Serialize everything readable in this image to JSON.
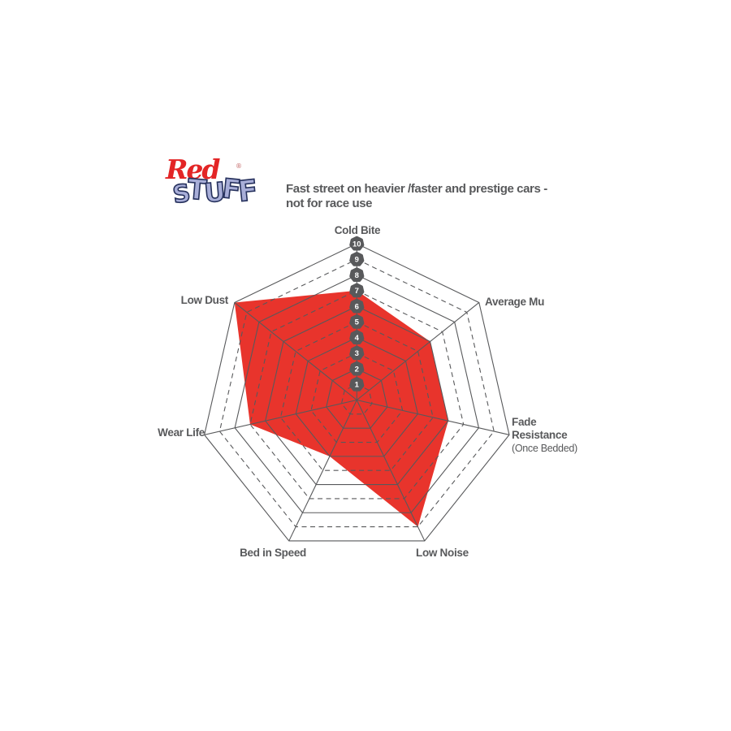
{
  "page": {
    "background": "#ffffff"
  },
  "logo": {
    "word1": "Red",
    "registered_mark": "®",
    "word2": "STUFF",
    "word1_color": "#e32526",
    "word2_fill": "#a8aed8",
    "word2_outline": "#25305c"
  },
  "description": {
    "line1": "Fast street on heavier /faster and prestige cars -",
    "line2": "not for race use"
  },
  "chart_data": {
    "type": "radar",
    "categories": [
      "Cold Bite",
      "Average Mu",
      "Fade Resistance (Once Bedded)",
      "Low Noise",
      "Bed in Speed",
      "Wear Life",
      "Low Dust"
    ],
    "values": [
      7,
      6,
      6,
      9,
      4,
      7,
      10
    ],
    "scale_min": 1,
    "scale_max": 10,
    "scale_ticks": [
      1,
      2,
      3,
      4,
      5,
      6,
      7,
      8,
      9,
      10
    ],
    "grid": {
      "shape": "heptagon",
      "even_rings": "solid",
      "odd_rings": "dashed",
      "spokes": "solid"
    },
    "legend_position": "none",
    "colors": {
      "series_fill": "#e8342c",
      "grid_line": "#58595b",
      "tick_badge_fill": "#58595b",
      "tick_badge_text": "#ffffff",
      "label_text": "#58595b"
    },
    "axis_labels": {
      "cold_bite": "Cold Bite",
      "average_mu": "Average Mu",
      "fade_line1": "Fade",
      "fade_line2": "Resistance",
      "fade_sub": "(Once Bedded)",
      "low_noise": "Low Noise",
      "bed_in_speed": "Bed in Speed",
      "wear_life": "Wear Life",
      "low_dust": "Low Dust"
    }
  }
}
